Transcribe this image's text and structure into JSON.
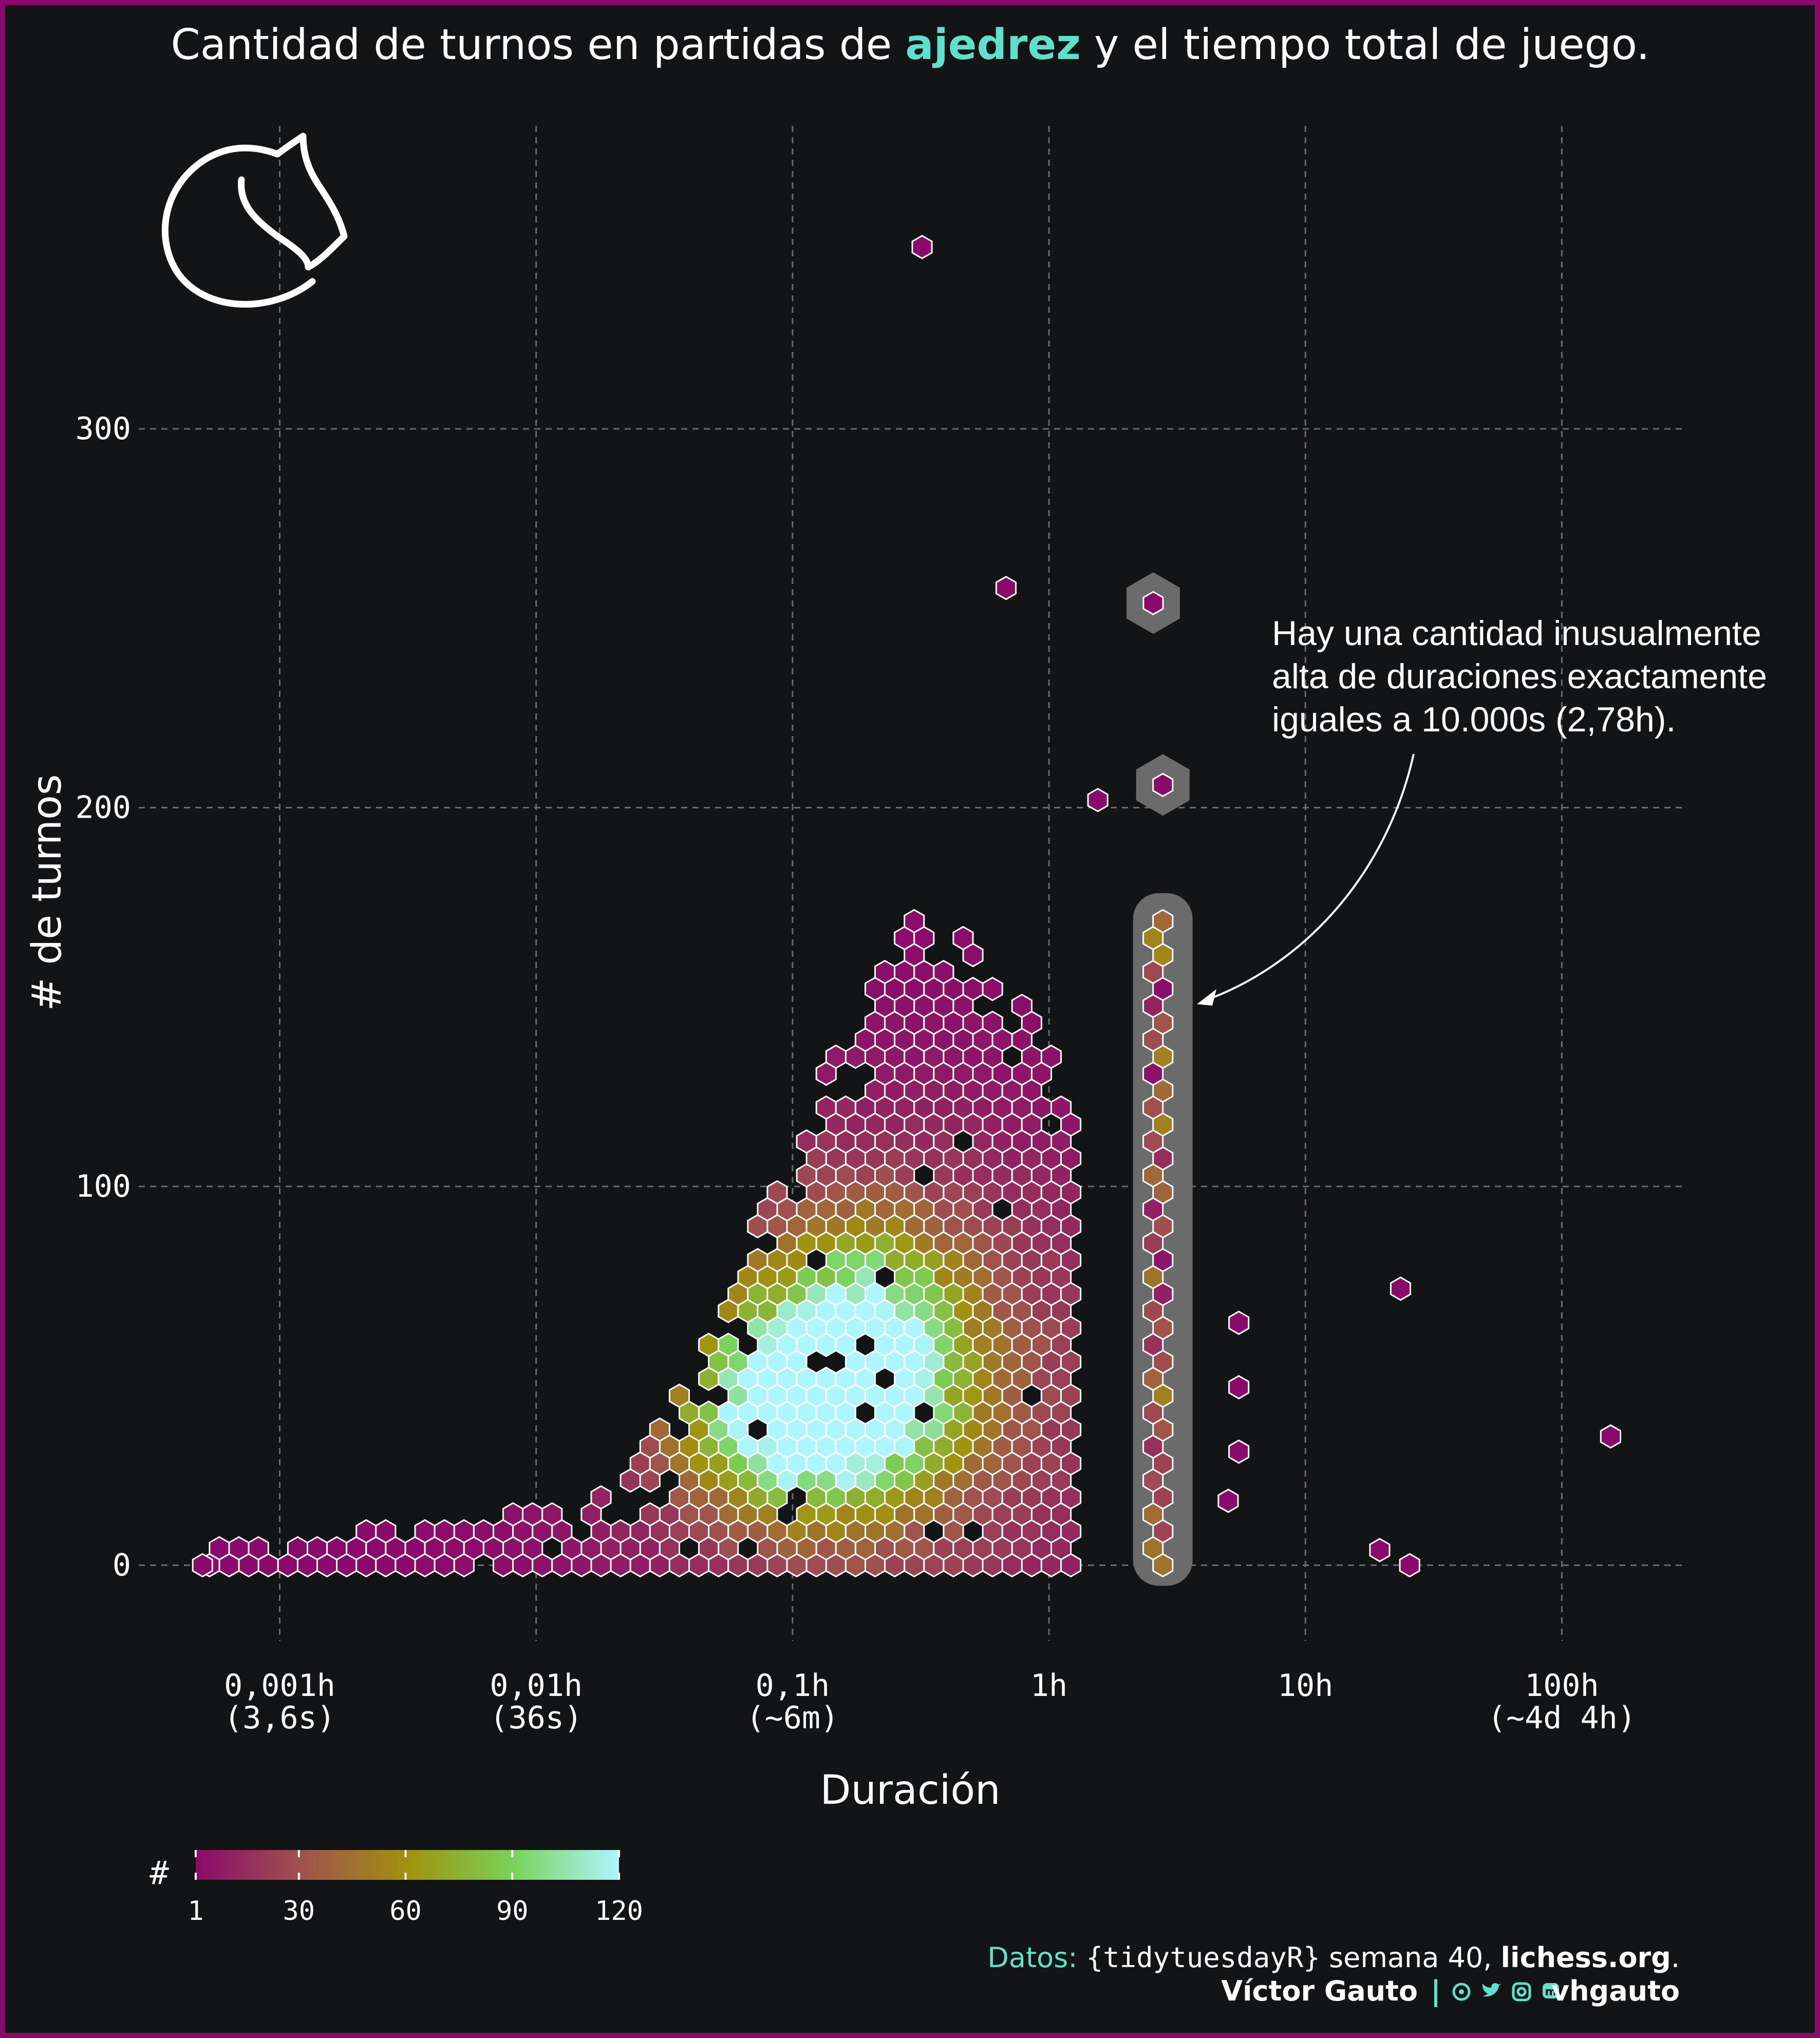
{
  "title": {
    "before": "Cantidad de turnos en partidas de ",
    "highlight": "ajedrez",
    "after": " y el tiempo total de  juego."
  },
  "colors": {
    "background": "#131416",
    "frame": "#8a0a6b",
    "accent": "#5fe0c8",
    "text": "#ffffff",
    "grid": "#6a6a6a",
    "halo": "#6b6b6b",
    "scale": [
      "#8a0a6b",
      "#a0524e",
      "#a0920e",
      "#7ad25a",
      "#aef6ff"
    ]
  },
  "logo": {
    "icon": "lichess-knight-icon"
  },
  "annotation": {
    "lines": [
      "Hay una cantidad inusualmente",
      "alta de duraciones exactamente",
      "iguales a 10.000s (2,78h)."
    ]
  },
  "chart_data": {
    "type": "hexbin",
    "title": "Cantidad de turnos en partidas de ajedrez y el tiempo total de juego.",
    "xlabel": "Duración",
    "ylabel": "# de turnos",
    "x_scale": "log10 (hours)",
    "xlim_log10_hours": [
      -3.55,
      2.47
    ],
    "ylim": [
      -20,
      380
    ],
    "x_ticks": [
      {
        "value_log10": -3,
        "label1": "0,001h",
        "label2": "(3,6s)"
      },
      {
        "value_log10": -2,
        "label1": "0,01h",
        "label2": "(36s)"
      },
      {
        "value_log10": -1,
        "label1": "0,1h",
        "label2": "(~6m)"
      },
      {
        "value_log10": 0,
        "label1": "1h",
        "label2": ""
      },
      {
        "value_log10": 1,
        "label1": "10h",
        "label2": ""
      },
      {
        "value_log10": 2,
        "label1": "100h",
        "label2": "(~4d 4h)"
      }
    ],
    "y_ticks": [
      0,
      100,
      200,
      300
    ],
    "legend": {
      "title": "#",
      "min": 1,
      "max": 120,
      "ticks": [
        1,
        30,
        60,
        90,
        120
      ]
    },
    "bulk_density": {
      "peak": {
        "log10_hours": -0.95,
        "turns": 40,
        "count": 120
      },
      "secondary_peak": {
        "log10_hours": -0.73,
        "turns": 60,
        "count": 95
      },
      "duration_range_log10_hours": [
        -2.0,
        0.1
      ],
      "turns_range": [
        0,
        175
      ]
    },
    "low_duration_tail": {
      "log10_hours_range": [
        -3.3,
        -1.8
      ],
      "turns_range": [
        0,
        12
      ],
      "count_range": [
        1,
        15
      ]
    },
    "highlight_10000s": {
      "duration_hours": 2.78,
      "turns_range": [
        0,
        172
      ],
      "isolated_points": [
        {
          "duration_hours": 2.55,
          "turns": 254
        },
        {
          "duration_hours": 2.78,
          "turns": 206
        }
      ]
    },
    "outliers": [
      {
        "duration_hours": 0.32,
        "turns": 348
      },
      {
        "duration_hours": 0.68,
        "turns": 258
      },
      {
        "duration_hours": 0.0005,
        "turns": 0
      },
      {
        "duration_hours": 1.55,
        "turns": 202
      },
      {
        "duration_hours": 5.5,
        "turns": 64
      },
      {
        "duration_hours": 5.5,
        "turns": 47
      },
      {
        "duration_hours": 5.5,
        "turns": 30
      },
      {
        "duration_hours": 5.0,
        "turns": 17
      },
      {
        "duration_hours": 23.5,
        "turns": 73
      },
      {
        "duration_hours": 19.5,
        "turns": 4
      },
      {
        "duration_hours": 25.5,
        "turns": 0
      },
      {
        "duration_hours": 155,
        "turns": 34
      }
    ]
  },
  "credits": {
    "label": "Datos: ",
    "source": "{tidytuesdayR}",
    "week": " semana 40, ",
    "site": "lichess.org",
    "period": ".",
    "author": "Víctor Gauto",
    "separator": "|",
    "icons": [
      "github-icon",
      "twitter-icon",
      "instagram-icon",
      "mastodon-icon"
    ],
    "handle": "vhgauto"
  }
}
